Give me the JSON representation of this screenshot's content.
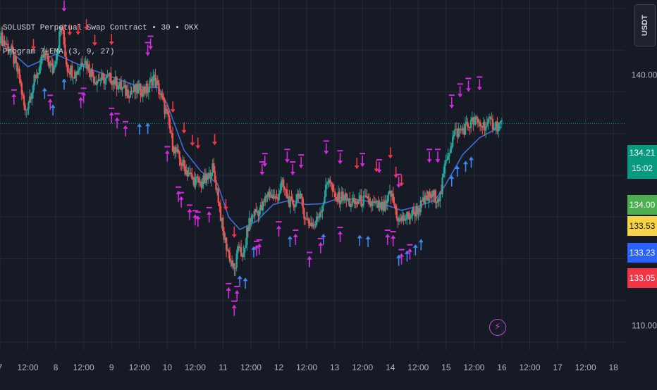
{
  "header": {
    "symbol_line": "SOLUSDT Perpetual Swap Contract • 30 • OKX",
    "indicator_line": "Program 7-EMA (3, 9, 27)"
  },
  "ticker_button": "USDT",
  "price_labels": [
    {
      "value": 134.21,
      "text": "134.21",
      "sub": "15:02",
      "bg": "#089981",
      "fg": "#ffffff"
    },
    {
      "value": 134.0,
      "text": "134.00",
      "bg": "#4caf50",
      "fg": "#ffffff"
    },
    {
      "value": 133.53,
      "text": "133.53",
      "bg": "#f7d345",
      "fg": "#131722"
    },
    {
      "value": 133.23,
      "text": "133.23",
      "bg": "#2962ff",
      "fg": "#ffffff"
    },
    {
      "value": 133.05,
      "text": "133.05",
      "bg": "#f23645",
      "fg": "#ffffff"
    }
  ],
  "colors": {
    "background": "#161a25",
    "grid": "#262b38",
    "axis_text": "#b2b5be",
    "candle_up": "#26a69a",
    "candle_down": "#ef5350",
    "ema_slow": "#3d6dd8",
    "arrow_up": "#3d86f5",
    "arrow_down": "#f23645",
    "arrow_magenta": "#d32ae0",
    "last_price_line": "#089981"
  },
  "chart_data": {
    "type": "line",
    "series_style": "candles",
    "y_ticks": [
      {
        "value": 140,
        "label": "140.00"
      },
      {
        "value": 110,
        "label": "110.00"
      }
    ],
    "ylim": [
      107.0,
      149.0
    ],
    "x_ticks": [
      "7",
      "12:00",
      "8",
      "12:00",
      "9",
      "12:00",
      "10",
      "12:00",
      "11",
      "12:00",
      "12",
      "12:00",
      "13",
      "12:00",
      "14",
      "12:00",
      "15",
      "12:00",
      "16",
      "12:00",
      "17",
      "12:00",
      "18"
    ],
    "x_range_days": [
      7.0,
      18.2
    ],
    "last_price": 134.21,
    "price_path": [
      [
        7.0,
        144.6
      ],
      [
        7.2,
        142.9
      ],
      [
        7.35,
        139.6
      ],
      [
        7.45,
        135.5
      ],
      [
        7.6,
        139.0
      ],
      [
        7.8,
        142.5
      ],
      [
        7.95,
        140.5
      ],
      [
        8.05,
        144.0
      ],
      [
        8.1,
        146.2
      ],
      [
        8.2,
        141.0
      ],
      [
        8.35,
        140.2
      ],
      [
        8.5,
        142.0
      ],
      [
        8.7,
        139.5
      ],
      [
        9.0,
        139.6
      ],
      [
        9.25,
        138.0
      ],
      [
        9.45,
        138.2
      ],
      [
        9.65,
        138.3
      ],
      [
        9.75,
        139.8
      ],
      [
        9.85,
        138.2
      ],
      [
        10.0,
        135.0
      ],
      [
        10.1,
        131.5
      ],
      [
        10.25,
        129.5
      ],
      [
        10.45,
        127.5
      ],
      [
        10.6,
        127.0
      ],
      [
        10.75,
        127.7
      ],
      [
        10.8,
        129.2
      ],
      [
        10.9,
        126.0
      ],
      [
        11.0,
        121.0
      ],
      [
        11.1,
        118.6
      ],
      [
        11.2,
        116.5
      ],
      [
        11.3,
        120.0
      ],
      [
        11.35,
        117.5
      ],
      [
        11.45,
        122.0
      ],
      [
        11.55,
        123.5
      ],
      [
        11.7,
        124.0
      ],
      [
        11.8,
        126.0
      ],
      [
        11.95,
        125.0
      ],
      [
        12.05,
        127.0
      ],
      [
        12.15,
        125.5
      ],
      [
        12.25,
        124.0
      ],
      [
        12.35,
        126.0
      ],
      [
        12.5,
        122.5
      ],
      [
        12.65,
        122.0
      ],
      [
        12.8,
        125.0
      ],
      [
        12.9,
        128.0
      ],
      [
        13.0,
        125.0
      ],
      [
        13.15,
        125.5
      ],
      [
        13.3,
        124.5
      ],
      [
        13.5,
        125.0
      ],
      [
        13.7,
        124.5
      ],
      [
        13.9,
        124.0
      ],
      [
        14.0,
        126.0
      ],
      [
        14.15,
        122.5
      ],
      [
        14.3,
        123.0
      ],
      [
        14.5,
        124.0
      ],
      [
        14.7,
        125.5
      ],
      [
        14.9,
        125.5
      ],
      [
        15.0,
        130.0
      ],
      [
        15.15,
        133.0
      ],
      [
        15.3,
        133.5
      ],
      [
        15.5,
        134.5
      ],
      [
        15.65,
        134.0
      ],
      [
        15.8,
        134.3
      ],
      [
        15.92,
        134.0
      ],
      [
        16.0,
        134.21
      ]
    ],
    "ema_path": [
      [
        7.0,
        144.0
      ],
      [
        7.5,
        141.0
      ],
      [
        8.0,
        142.5
      ],
      [
        8.5,
        141.0
      ],
      [
        9.0,
        139.8
      ],
      [
        9.5,
        138.6
      ],
      [
        9.85,
        138.5
      ],
      [
        10.0,
        136.5
      ],
      [
        10.3,
        131.0
      ],
      [
        10.6,
        128.5
      ],
      [
        10.9,
        127.0
      ],
      [
        11.1,
        123.0
      ],
      [
        11.3,
        121.5
      ],
      [
        11.6,
        122.5
      ],
      [
        11.9,
        124.5
      ],
      [
        12.2,
        125.0
      ],
      [
        12.5,
        124.5
      ],
      [
        12.8,
        124.6
      ],
      [
        13.1,
        125.3
      ],
      [
        13.5,
        125.0
      ],
      [
        13.9,
        124.5
      ],
      [
        14.2,
        123.8
      ],
      [
        14.5,
        124.3
      ],
      [
        14.8,
        125.0
      ],
      [
        15.0,
        127.0
      ],
      [
        15.3,
        130.5
      ],
      [
        15.6,
        132.5
      ],
      [
        15.85,
        133.4
      ],
      [
        16.0,
        133.8
      ]
    ],
    "signals_down_red": [
      7.6,
      8.25,
      8.4,
      8.55,
      8.7,
      9.0,
      10.1,
      10.3,
      10.45,
      10.55,
      10.85,
      11.05,
      11.2,
      13.4,
      13.75,
      14.0,
      14.1,
      14.2
    ],
    "signals_down_magenta": [
      8.15,
      9.65,
      9.7,
      11.7,
      11.75,
      12.15,
      12.25,
      12.4,
      12.85,
      13.1,
      13.5,
      13.8,
      14.15,
      14.7,
      14.85,
      15.1,
      15.25,
      15.4,
      15.6
    ],
    "signals_up_blue": [
      7.8,
      7.95,
      8.15,
      9.5,
      9.65,
      11.3,
      11.4,
      11.55,
      12.2,
      12.55,
      12.8,
      13.45,
      13.6,
      14.15,
      14.3,
      14.45,
      14.55,
      15.1,
      15.2,
      15.35,
      15.45
    ],
    "signals_up_magenta": [
      7.25,
      7.9,
      8.45,
      8.5,
      9.0,
      9.1,
      9.25,
      10.0,
      10.2,
      10.25,
      10.4,
      10.5,
      10.55,
      10.75,
      11.1,
      11.2,
      11.25,
      11.6,
      11.65,
      12.0,
      12.3,
      12.55,
      12.75,
      13.1,
      13.95,
      14.05,
      14.2,
      14.35
    ]
  }
}
